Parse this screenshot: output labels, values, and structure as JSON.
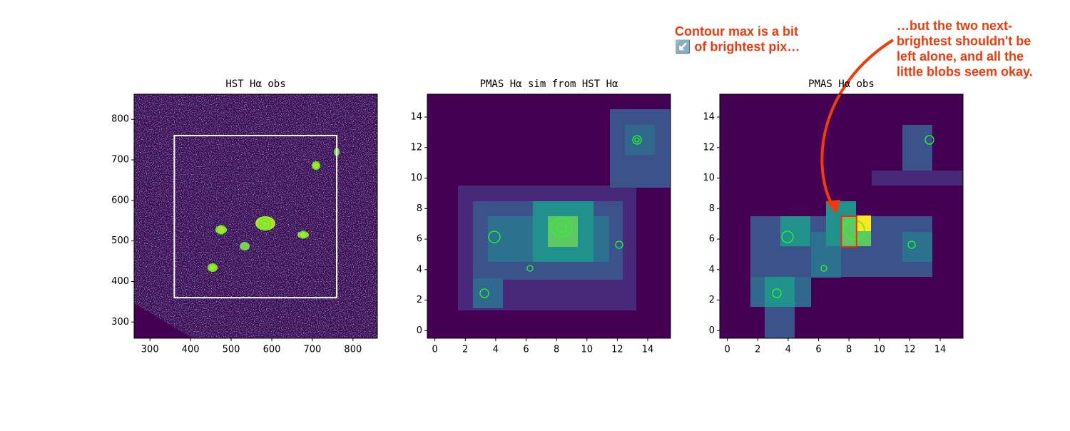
{
  "chart_data": [
    {
      "type": "image",
      "title": "HST Hα obs",
      "xlim": [
        261,
        860
      ],
      "ylim": [
        260,
        862
      ],
      "xticks": [
        300,
        400,
        500,
        600,
        700,
        800
      ],
      "yticks": [
        300,
        400,
        500,
        600,
        700,
        800
      ],
      "box": {
        "x": [
          360,
          760
        ],
        "y": [
          360,
          760
        ],
        "color": "#ffffff"
      }
    },
    {
      "type": "image",
      "title": "PMAS Hα sim from HST Hα",
      "xlim": [
        -0.5,
        15.5
      ],
      "ylim": [
        -0.5,
        15.5
      ],
      "xticks": [
        0,
        2,
        4,
        6,
        8,
        10,
        12,
        14
      ],
      "yticks": [
        0,
        2,
        4,
        6,
        8,
        10,
        12,
        14
      ]
    },
    {
      "type": "image",
      "title": "PMAS Hα obs",
      "xlim": [
        -0.5,
        15.5
      ],
      "ylim": [
        -0.5,
        15.5
      ],
      "xticks": [
        0,
        2,
        4,
        6,
        8,
        10,
        12,
        14
      ],
      "yticks": [
        0,
        2,
        4,
        6,
        8,
        10,
        12,
        14
      ],
      "box": {
        "x": [
          7.5,
          8.5
        ],
        "y": [
          5.5,
          7.5
        ],
        "color": "#ff2a00"
      },
      "annotations": [
        {
          "lines": [
            "Contour max is a bit",
            "↙️ of brightest pix…"
          ]
        },
        {
          "lines": [
            "…but the two next-",
            "brightest shouldn't be",
            "left alone, and all the",
            "little blobs seem okay."
          ]
        }
      ]
    }
  ]
}
